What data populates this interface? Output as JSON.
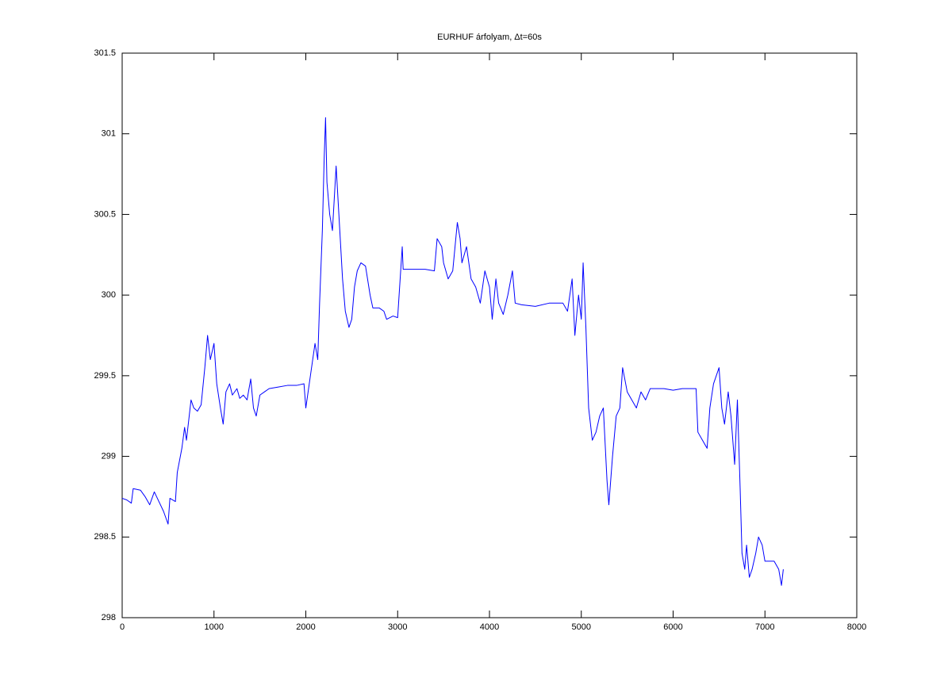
{
  "chart_data": {
    "type": "line",
    "title": "EURHUF árfolyam, Δt=60s",
    "x": [
      0,
      50,
      100,
      120,
      200,
      250,
      300,
      350,
      400,
      450,
      500,
      520,
      580,
      600,
      650,
      680,
      700,
      730,
      750,
      780,
      820,
      860,
      900,
      930,
      960,
      1000,
      1030,
      1070,
      1100,
      1130,
      1170,
      1200,
      1250,
      1280,
      1320,
      1360,
      1400,
      1430,
      1460,
      1500,
      1550,
      1600,
      1700,
      1800,
      1900,
      1980,
      2000,
      2050,
      2100,
      2130,
      2150,
      2180,
      2200,
      2215,
      2230,
      2260,
      2290,
      2330,
      2360,
      2400,
      2430,
      2470,
      2500,
      2530,
      2560,
      2600,
      2650,
      2700,
      2730,
      2800,
      2850,
      2880,
      2950,
      3000,
      3050,
      3060,
      3200,
      3300,
      3400,
      3430,
      3480,
      3500,
      3550,
      3600,
      3650,
      3680,
      3700,
      3750,
      3800,
      3850,
      3900,
      3950,
      4000,
      4030,
      4070,
      4100,
      4150,
      4200,
      4250,
      4280,
      4350,
      4500,
      4650,
      4800,
      4850,
      4900,
      4930,
      4970,
      5000,
      5020,
      5050,
      5080,
      5120,
      5160,
      5200,
      5240,
      5280,
      5300,
      5340,
      5380,
      5420,
      5450,
      5500,
      5550,
      5600,
      5650,
      5700,
      5750,
      5800,
      5900,
      6000,
      6100,
      6250,
      6270,
      6320,
      6370,
      6400,
      6440,
      6500,
      6530,
      6560,
      6600,
      6630,
      6670,
      6700,
      6730,
      6750,
      6780,
      6800,
      6830,
      6860,
      6900,
      6930,
      6970,
      7000,
      7050,
      7100,
      7150,
      7180,
      7200
    ],
    "series": [
      {
        "color": "#0000ff",
        "values": [
          298.74,
          298.73,
          298.71,
          298.8,
          298.79,
          298.75,
          298.7,
          298.78,
          298.72,
          298.66,
          298.58,
          298.74,
          298.72,
          298.9,
          299.05,
          299.18,
          299.1,
          299.25,
          299.35,
          299.3,
          299.28,
          299.32,
          299.55,
          299.75,
          299.6,
          299.7,
          299.45,
          299.3,
          299.2,
          299.4,
          299.45,
          299.38,
          299.42,
          299.36,
          299.38,
          299.35,
          299.48,
          299.3,
          299.25,
          299.38,
          299.4,
          299.42,
          299.43,
          299.44,
          299.44,
          299.45,
          299.3,
          299.5,
          299.7,
          299.6,
          299.95,
          300.4,
          300.85,
          301.1,
          300.7,
          300.5,
          300.4,
          300.8,
          300.5,
          300.1,
          299.9,
          299.8,
          299.85,
          300.05,
          300.15,
          300.2,
          300.18,
          300.0,
          299.92,
          299.92,
          299.9,
          299.85,
          299.87,
          299.86,
          300.3,
          300.16,
          300.16,
          300.16,
          300.15,
          300.35,
          300.3,
          300.2,
          300.1,
          300.15,
          300.45,
          300.35,
          300.2,
          300.3,
          300.1,
          300.05,
          299.95,
          300.15,
          300.05,
          299.85,
          300.1,
          299.95,
          299.88,
          300.0,
          300.15,
          299.95,
          299.94,
          299.93,
          299.95,
          299.95,
          299.9,
          300.1,
          299.75,
          300.0,
          299.85,
          300.2,
          299.8,
          299.3,
          299.1,
          299.15,
          299.25,
          299.3,
          298.85,
          298.7,
          299.0,
          299.25,
          299.3,
          299.55,
          299.4,
          299.35,
          299.3,
          299.4,
          299.35,
          299.42,
          299.42,
          299.42,
          299.41,
          299.42,
          299.42,
          299.15,
          299.1,
          299.05,
          299.3,
          299.45,
          299.55,
          299.3,
          299.2,
          299.4,
          299.25,
          298.95,
          299.35,
          298.8,
          298.4,
          298.3,
          298.45,
          298.25,
          298.3,
          298.4,
          298.5,
          298.45,
          298.35,
          298.35,
          298.35,
          298.3,
          298.2,
          298.3
        ]
      }
    ],
    "xlim": [
      0,
      8000
    ],
    "xticks": [
      0,
      1000,
      2000,
      3000,
      4000,
      5000,
      6000,
      7000,
      8000
    ],
    "ylim": [
      298,
      301.5
    ],
    "yticks": [
      298,
      298.5,
      299,
      299.5,
      300,
      300.5,
      301,
      301.5
    ]
  }
}
